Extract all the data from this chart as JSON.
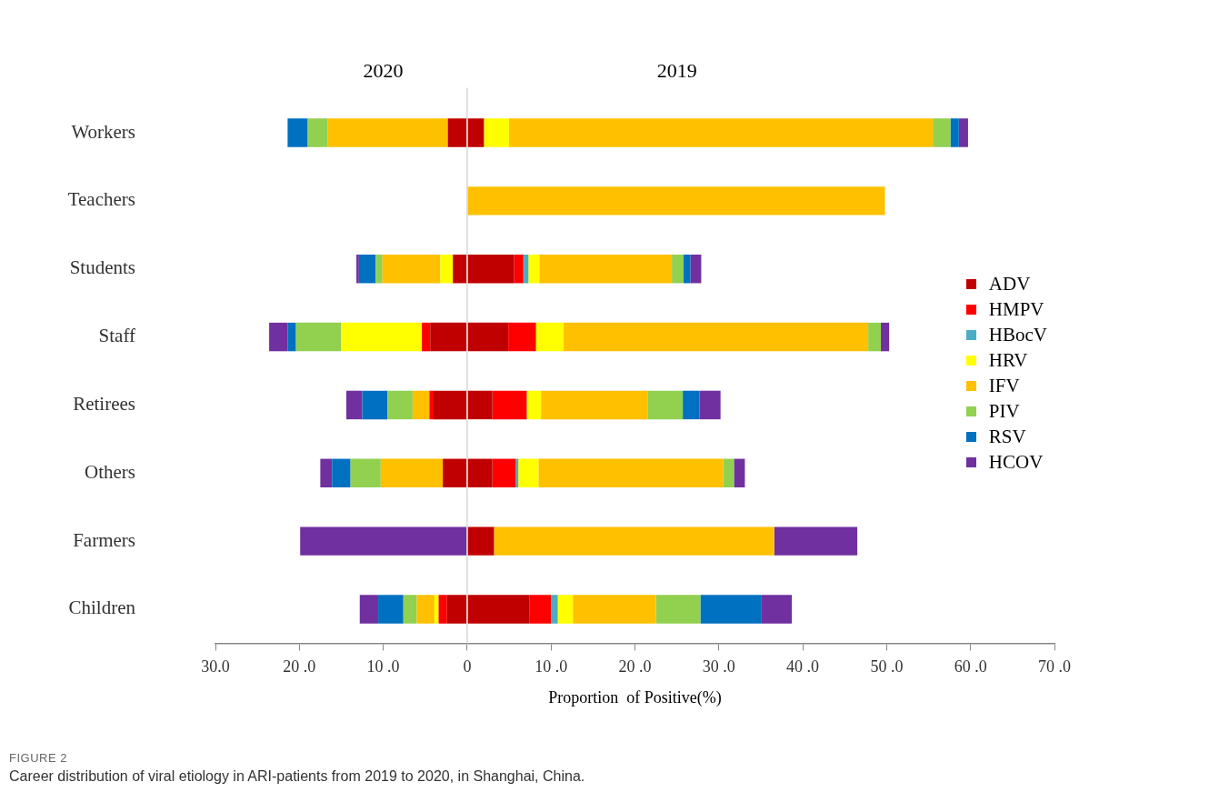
{
  "chart_data": {
    "type": "bar",
    "orientation": "horizontal",
    "stacked": true,
    "categories": [
      "Workers",
      "Teachers",
      "Students",
      "Staff",
      "Retirees",
      "Others",
      "Farmers",
      "Children"
    ],
    "xlabel": "Proportion  of Positive(%)",
    "xlim": [
      -30,
      70
    ],
    "xticks": [
      {
        "value": -30,
        "label": "30.0"
      },
      {
        "value": -20,
        "label": "20 .0"
      },
      {
        "value": -10,
        "label": "10 .0"
      },
      0,
      {
        "value": 10,
        "label": "10 .0"
      },
      {
        "value": 20,
        "label": "20 .0"
      },
      {
        "value": 30,
        "label": "30 .0"
      },
      {
        "value": 40,
        "label": "40 .0"
      },
      {
        "value": 50,
        "label": "50 .0"
      },
      {
        "value": 60,
        "label": "60 .0"
      },
      {
        "value": 70,
        "label": "70 .0"
      }
    ],
    "grid": false,
    "legend": "right",
    "ref_lines": [
      {
        "axis": "x",
        "value": 0,
        "color": "#d9d9d9"
      }
    ],
    "series": [
      {
        "name": "ADV",
        "color": "#c00000",
        "values": [
          2.0,
          0,
          5.6,
          4.9,
          3.0,
          3.0,
          3.2,
          7.4
        ]
      },
      {
        "name": "HMPV",
        "color": "#ff0000",
        "values": [
          0,
          0,
          1.1,
          3.3,
          4.1,
          2.8,
          0,
          2.6
        ]
      },
      {
        "name": "HBocV",
        "color": "#4bacc6",
        "values": [
          0,
          0,
          0.6,
          0,
          0,
          0.3,
          0,
          0.8
        ]
      },
      {
        "name": "HRV",
        "color": "#ffff00",
        "values": [
          3.0,
          0,
          1.3,
          3.3,
          1.7,
          2.4,
          0,
          1.8
        ]
      },
      {
        "name": "IFV",
        "color": "#ffc000",
        "values": [
          50.5,
          49.8,
          15.8,
          36.3,
          12.7,
          22.0,
          33.4,
          9.9
        ]
      },
      {
        "name": "PIV",
        "color": "#92d050",
        "values": [
          2.1,
          0,
          1.4,
          1.5,
          4.2,
          1.3,
          0,
          5.3
        ]
      },
      {
        "name": "RSV",
        "color": "#0070c0",
        "values": [
          1.0,
          0,
          0.8,
          0,
          2.0,
          0,
          0,
          7.3
        ]
      },
      {
        "name": "HCOV",
        "color": "#7030a0",
        "values": [
          1.1,
          0,
          1.3,
          1.0,
          2.5,
          1.3,
          9.9,
          3.6
        ]
      },
      {
        "color": "#c00000",
        "values": [
          -2.3,
          0,
          -1.7,
          -4.4,
          -4.0,
          -2.9,
          0,
          -2.4
        ]
      },
      {
        "color": "#ff0000",
        "values": [
          0,
          0,
          0,
          -1.0,
          -0.5,
          0,
          0,
          -1.0
        ]
      },
      {
        "color": "#4bacc6",
        "values": [
          0,
          0,
          0,
          0,
          0,
          0,
          0,
          0
        ]
      },
      {
        "color": "#ffff00",
        "values": [
          0,
          0,
          -1.5,
          -9.6,
          0,
          0,
          0,
          -0.5
        ]
      },
      {
        "color": "#ffc000",
        "values": [
          -14.3,
          0,
          -6.9,
          0,
          -2.0,
          -7.4,
          0,
          -2.1
        ]
      },
      {
        "color": "#92d050",
        "values": [
          -2.4,
          0,
          -0.8,
          -5.4,
          -3.0,
          -3.6,
          0,
          -1.6
        ]
      },
      {
        "color": "#0070c0",
        "values": [
          -2.4,
          0,
          -2.0,
          -1.0,
          -3.0,
          -2.2,
          0,
          -3.0
        ]
      },
      {
        "color": "#7030a0",
        "values": [
          0,
          0,
          -0.3,
          -2.2,
          -1.9,
          -1.4,
          -19.9,
          -2.2
        ]
      }
    ],
    "annotations": [
      "2020",
      "2019",
      "FIGURE 2",
      "Career distribution of viral etiology in ARI-patients from 2019 to 2020, in Shanghai, China."
    ]
  }
}
